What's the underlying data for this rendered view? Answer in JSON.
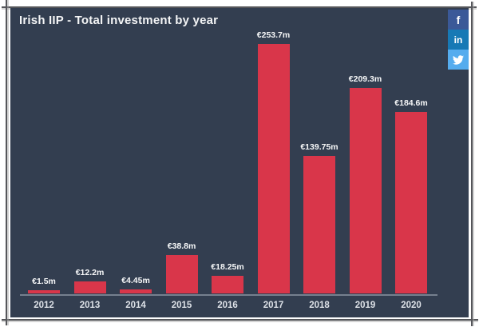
{
  "header": {
    "title": "Irish IIP - Total investment by year"
  },
  "social": {
    "facebook": {
      "label": "f",
      "color": "#3b5998"
    },
    "linkedin": {
      "label": "in",
      "color": "#1779b5"
    },
    "twitter": {
      "label": "twitter-bird",
      "color": "#55acee"
    }
  },
  "chart_data": {
    "type": "bar",
    "title": "Irish IIP - Total investment by year",
    "categories": [
      "2012",
      "2013",
      "2014",
      "2015",
      "2016",
      "2017",
      "2018",
      "2019",
      "2020"
    ],
    "values": [
      1.5,
      12.2,
      4.45,
      38.8,
      18.25,
      253.7,
      139.75,
      209.3,
      184.6
    ],
    "value_labels": [
      "€1.5m",
      "€12.2m",
      "€4.45m",
      "€38.8m",
      "€18.25m",
      "€253.7m",
      "€139.75m",
      "€209.3m",
      "€184.6m"
    ],
    "unit": "€m",
    "xlabel": "",
    "ylabel": "",
    "ylim": [
      0,
      260
    ],
    "grid": false,
    "legend": false,
    "bar_color": "#d9364a",
    "background_color": "#333e50",
    "label_color": "#f6f7f8",
    "axis_color": "#76808e"
  }
}
